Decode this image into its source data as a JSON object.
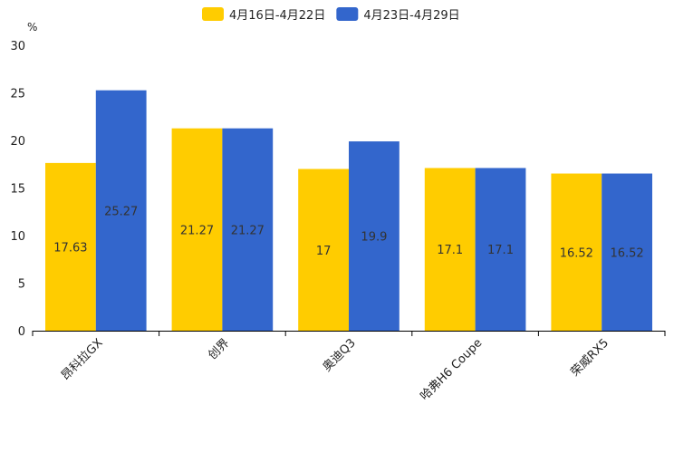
{
  "chart_data": {
    "type": "bar",
    "unit_label": "%",
    "categories": [
      "昂科拉GX",
      "创界",
      "奥迪Q3",
      "哈弗H6 Coupe",
      "荣威RX5"
    ],
    "series": [
      {
        "name": "4月16日-4月22日",
        "color": "#FFCC00",
        "values": [
          17.63,
          21.27,
          17,
          17.1,
          16.52
        ]
      },
      {
        "name": "4月23日-4月29日",
        "color": "#3366CC",
        "values": [
          25.27,
          21.27,
          19.9,
          17.1,
          16.52
        ]
      }
    ],
    "yticks": [
      0,
      5,
      10,
      15,
      20,
      25,
      30
    ],
    "ylim": [
      0,
      30
    ],
    "legend": "top-center",
    "grid": false
  }
}
